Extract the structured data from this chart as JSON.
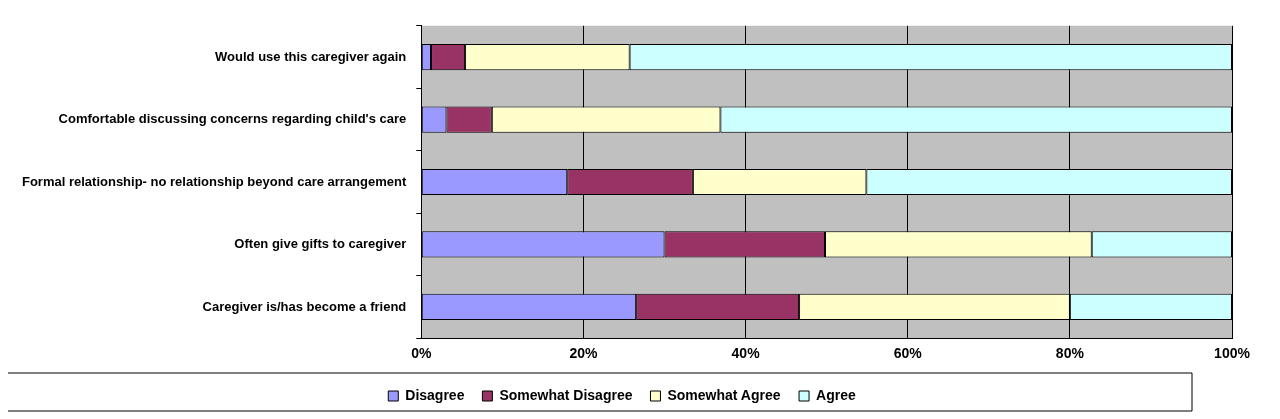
{
  "chart_data": {
    "type": "bar",
    "orientation": "horizontal",
    "stacked": true,
    "categories": [
      "Would use this caregiver again",
      "Comfortable discussing concerns regarding child's care",
      "Formal relationship- no relationship beyond care arrangement",
      "Often give gifts to caregiver",
      "Caregiver is/has become a friend"
    ],
    "series": [
      {
        "name": "Disagree",
        "color": "#9999ff",
        "values": [
          1.2,
          3.1,
          18,
          30,
          26.5
        ]
      },
      {
        "name": "Somewhat Disagree",
        "color": "#993366",
        "values": [
          4.2,
          5.6,
          15.5,
          19.8,
          20.1
        ]
      },
      {
        "name": "Somewhat Agree",
        "color": "#ffffcc",
        "values": [
          20.3,
          28.2,
          21.4,
          32.9,
          33.4
        ]
      },
      {
        "name": "Agree",
        "color": "#ccffff",
        "values": [
          74.3,
          63.1,
          45.1,
          17.3,
          20
        ]
      }
    ],
    "xlim": [
      0,
      100
    ],
    "xticks": [
      {
        "value": 0,
        "label": "0%"
      },
      {
        "value": 20,
        "label": "20%"
      },
      {
        "value": 40,
        "label": "40%"
      },
      {
        "value": 60,
        "label": "60%"
      },
      {
        "value": 80,
        "label": "80%"
      },
      {
        "value": 100,
        "label": "100%"
      }
    ],
    "grid": "x",
    "legend": "bottom"
  }
}
